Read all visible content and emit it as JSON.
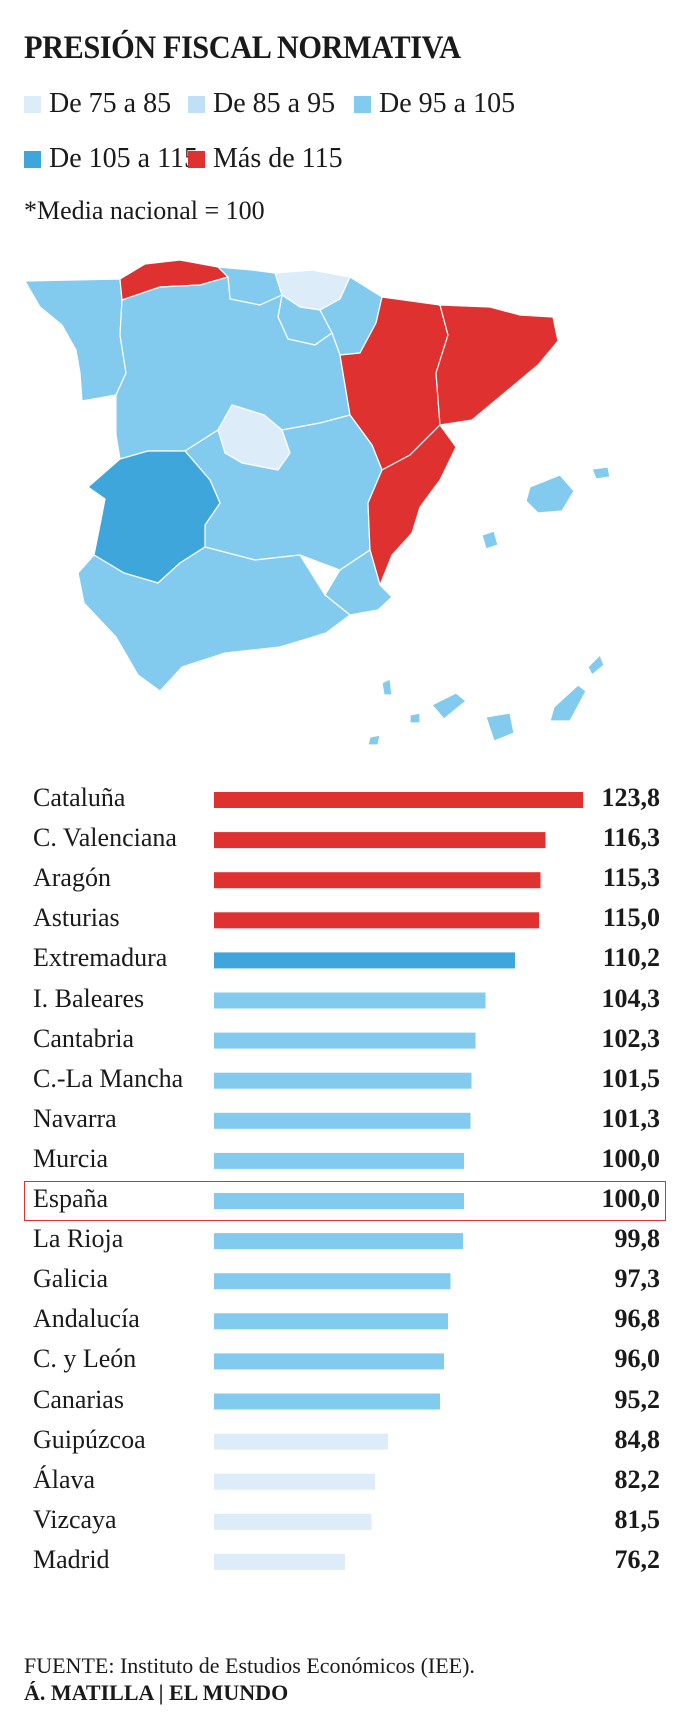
{
  "title": "PRESIÓN FISCAL NORMATIVA",
  "legend": [
    {
      "label": "De 75 a 85",
      "color": "#dcecf8"
    },
    {
      "label": "De 85 a 95",
      "color": "#bfe0f5"
    },
    {
      "label": "De 95 a 105",
      "color": "#82cbef"
    },
    {
      "label": "De 105 a 115",
      "color": "#3fa6dc"
    },
    {
      "label": "Más de 115",
      "color": "#e03131"
    }
  ],
  "note": "*Media nacional = 100",
  "source": "FUENTE: Instituto de Estudios Económicos (IEE).",
  "credit": "Á. MATILLA | EL MUNDO",
  "highlight_row": "España",
  "chart_data": {
    "type": "bar",
    "orientation": "horizontal",
    "title": "PRESIÓN FISCAL NORMATIVA",
    "xlim": [
      50,
      124
    ],
    "rows": [
      {
        "label": "Cataluña",
        "value": 123.8,
        "value_text": "123,8",
        "color": "#e03131"
      },
      {
        "label": "C. Valenciana",
        "value": 116.3,
        "value_text": "116,3",
        "color": "#e03131"
      },
      {
        "label": "Aragón",
        "value": 115.3,
        "value_text": "115,3",
        "color": "#e03131"
      },
      {
        "label": "Asturias",
        "value": 115.0,
        "value_text": "115,0",
        "color": "#e03131"
      },
      {
        "label": "Extremadura",
        "value": 110.2,
        "value_text": "110,2",
        "color": "#3fa6dc"
      },
      {
        "label": "I. Baleares",
        "value": 104.3,
        "value_text": "104,3",
        "color": "#82cbef"
      },
      {
        "label": "Cantabria",
        "value": 102.3,
        "value_text": "102,3",
        "color": "#82cbef"
      },
      {
        "label": "C.-La Mancha",
        "value": 101.5,
        "value_text": "101,5",
        "color": "#82cbef"
      },
      {
        "label": "Navarra",
        "value": 101.3,
        "value_text": "101,3",
        "color": "#82cbef"
      },
      {
        "label": "Murcia",
        "value": 100.0,
        "value_text": "100,0",
        "color": "#82cbef"
      },
      {
        "label": "España",
        "value": 100.0,
        "value_text": "100,0",
        "color": "#82cbef"
      },
      {
        "label": "La Rioja",
        "value": 99.8,
        "value_text": "99,8",
        "color": "#82cbef"
      },
      {
        "label": "Galicia",
        "value": 97.3,
        "value_text": "97,3",
        "color": "#82cbef"
      },
      {
        "label": "Andalucía",
        "value": 96.8,
        "value_text": "96,8",
        "color": "#82cbef"
      },
      {
        "label": "C. y León",
        "value": 96.0,
        "value_text": "96,0",
        "color": "#82cbef"
      },
      {
        "label": "Canarias",
        "value": 95.2,
        "value_text": "95,2",
        "color": "#82cbef"
      },
      {
        "label": "Guipúzcoa",
        "value": 84.8,
        "value_text": "84,8",
        "color": "#dcecf8"
      },
      {
        "label": "Álava",
        "value": 82.2,
        "value_text": "82,2",
        "color": "#dcecf8"
      },
      {
        "label": "Vizcaya",
        "value": 81.5,
        "value_text": "81,5",
        "color": "#dcecf8"
      },
      {
        "label": "Madrid",
        "value": 76.2,
        "value_text": "76,2",
        "color": "#dcecf8"
      }
    ]
  },
  "map_regions": [
    {
      "name": "Galicia",
      "color": "#82cbef"
    },
    {
      "name": "Asturias",
      "color": "#e03131"
    },
    {
      "name": "Cantabria",
      "color": "#82cbef"
    },
    {
      "name": "País Vasco",
      "color": "#dcecf8"
    },
    {
      "name": "Navarra",
      "color": "#82cbef"
    },
    {
      "name": "La Rioja",
      "color": "#82cbef"
    },
    {
      "name": "Castilla y León",
      "color": "#82cbef"
    },
    {
      "name": "Aragón",
      "color": "#e03131"
    },
    {
      "name": "Cataluña",
      "color": "#e03131"
    },
    {
      "name": "Madrid",
      "color": "#dcecf8"
    },
    {
      "name": "Castilla-La Mancha",
      "color": "#82cbef"
    },
    {
      "name": "Extremadura",
      "color": "#3fa6dc"
    },
    {
      "name": "C. Valenciana",
      "color": "#e03131"
    },
    {
      "name": "Murcia",
      "color": "#82cbef"
    },
    {
      "name": "Andalucía",
      "color": "#82cbef"
    },
    {
      "name": "I. Baleares",
      "color": "#82cbef"
    },
    {
      "name": "Canarias",
      "color": "#82cbef"
    }
  ]
}
